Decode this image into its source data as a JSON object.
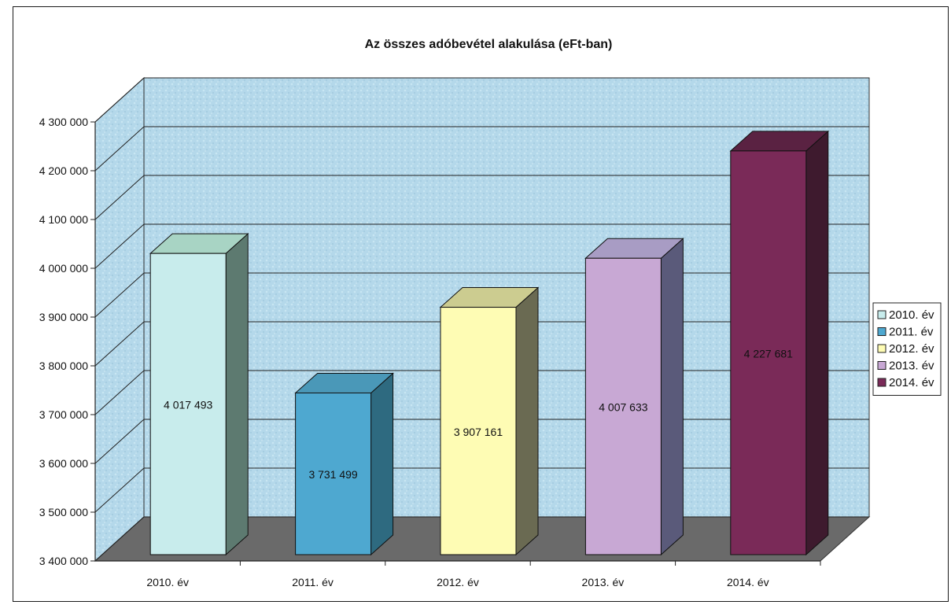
{
  "chart_data": {
    "type": "bar",
    "title": "Az összes adóbevétel alakulása (eFt-ban)",
    "categories": [
      "2010. év",
      "2011. év",
      "2012. év",
      "2013. év",
      "2014. év"
    ],
    "values": [
      4017493,
      3731499,
      3907161,
      4007633,
      4227681
    ],
    "data_labels": [
      "4 017 493",
      "3 731 499",
      "3 907 161",
      "4 007 633",
      "4 227 681"
    ],
    "ylim": [
      3400000,
      4300000
    ],
    "yticks": [
      3400000,
      3500000,
      3600000,
      3700000,
      3800000,
      3900000,
      4000000,
      4100000,
      4200000,
      4300000
    ],
    "ytick_labels": [
      "3 400 000",
      "3 500 000",
      "3 600 000",
      "3 700 000",
      "3 800 000",
      "3 900 000",
      "4 000 000",
      "4 100 000",
      "4 200 000",
      "4 300 000"
    ],
    "grid": true,
    "legend": {
      "placement": "right",
      "entries": [
        "2010. év",
        "2011. év",
        "2012. év",
        "2013. év",
        "2014. év"
      ]
    },
    "colors": [
      "#c8ecec",
      "#4ea8d0",
      "#fefcb4",
      "#c8a8d4",
      "#7a2a58"
    ],
    "side_colors": [
      "#5d7a70",
      "#2e6a80",
      "#6a6a52",
      "#5a5a7a",
      "#3e1a2e"
    ],
    "top_colors": [
      "#a8d4c4",
      "#4a98b8",
      "#cccc90",
      "#a89cc4",
      "#5a2242"
    ],
    "wall_color": "#b8dcec",
    "floor_color": "#6a6a6a"
  }
}
